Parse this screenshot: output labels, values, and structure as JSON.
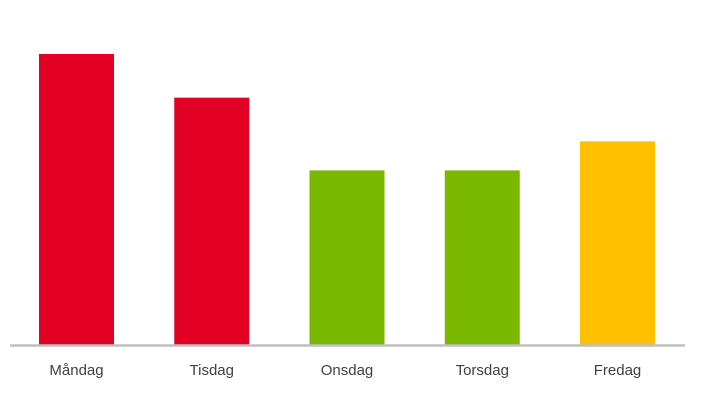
{
  "chart_data": {
    "type": "bar",
    "title": "",
    "xlabel": "",
    "ylabel": "",
    "categories": [
      "Måndag",
      "Tisdag",
      "Onsdag",
      "Torsdag",
      "Fredag"
    ],
    "values": [
      100,
      85,
      60,
      60,
      70
    ],
    "ylim": [
      0,
      100
    ],
    "grid": false,
    "bar_colors": [
      "#E20025",
      "#E20025",
      "#7AB800",
      "#7AB800",
      "#FFC000"
    ],
    "axis_color": "#BFBFBF"
  }
}
